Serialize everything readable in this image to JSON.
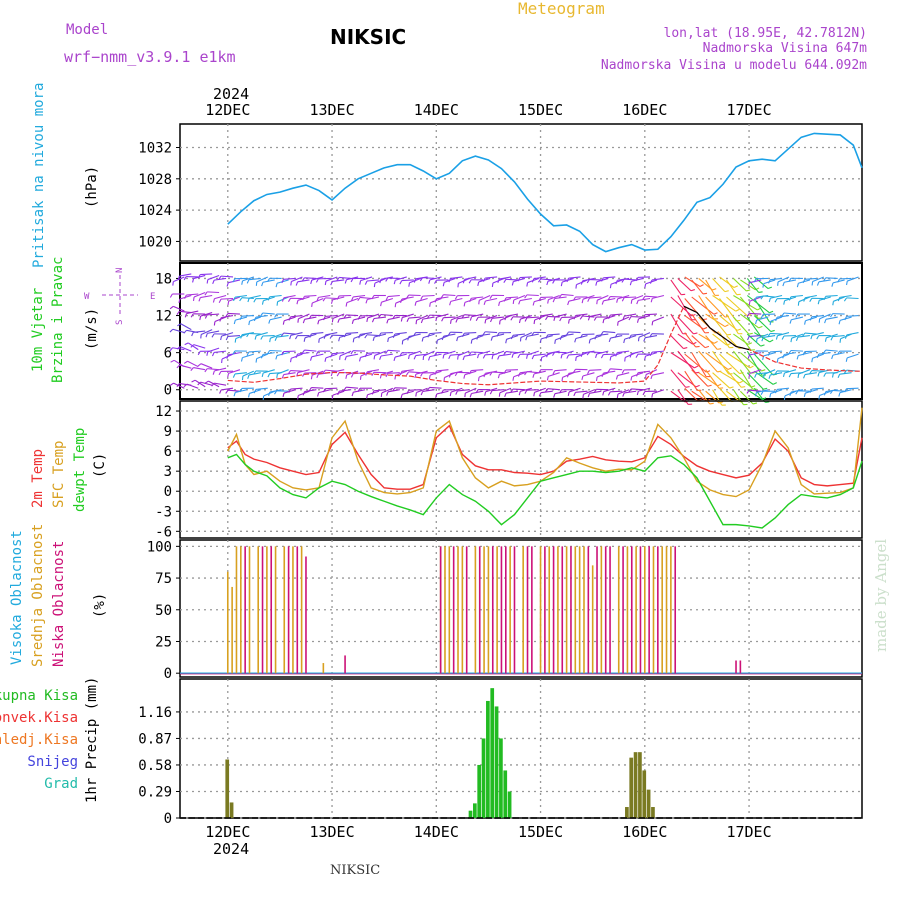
{
  "header": {
    "model_label": "Model",
    "model_name": "wrf−nmm_v3.9.1  e1km",
    "station": "NIKSIC",
    "meteogram": "Meteogram",
    "lonlat": "lon,lat (18.95E, 42.7812N)",
    "altitude": "Nadmorska Visina 647m",
    "model_altitude": "Nadmorska Visina u modelu 644.092m",
    "footer_station": "NIKSIC",
    "watermark": "made by Angel"
  },
  "colors": {
    "pressure": "#1aa0e6",
    "temp2m": "#ee3333",
    "sfc": "#d8a020",
    "dewpt": "#22cc22",
    "high_cloud": "#22aadd",
    "mid_cloud": "#d8a020",
    "low_cloud": "#cc1177",
    "total_precip": "#22bb22",
    "conv_precip": "#ee3333",
    "frz_precip": "#ee7722",
    "snow": "#4444dd",
    "grad": "#22bbaa",
    "title_purple": "#aa44cc",
    "title_gold": "#e8b830"
  },
  "icons": {
    "wind_compass": "wind-direction-compass-icon"
  },
  "chart_data": [
    {
      "type": "line",
      "panel": "pressure",
      "ylabel_title": "Pritisak na nivou mora",
      "ylabel_unit": "(hPa)",
      "ylim": [
        1017.5,
        1035
      ],
      "yticks": [
        1020,
        1024,
        1028,
        1032
      ],
      "x_top_year": "2024",
      "x_top_labels": [
        "12DEC",
        "13DEC",
        "14DEC",
        "15DEC",
        "16DEC",
        "17DEC"
      ],
      "grid": true,
      "series": [
        {
          "key": "pressure",
          "x": [
            0,
            3,
            6,
            9,
            12,
            15,
            18,
            21,
            24,
            27,
            30,
            33,
            36,
            39,
            42,
            45,
            48,
            51,
            54,
            57,
            60,
            63,
            66,
            69,
            72,
            75,
            78,
            81,
            84,
            87,
            90,
            93,
            96,
            99,
            102,
            105,
            108,
            111,
            114,
            117,
            120,
            123,
            126,
            129,
            132,
            135,
            138,
            141,
            144,
            146
          ],
          "values": [
            1022.2,
            1023.8,
            1025.2,
            1026.0,
            1026.3,
            1026.8,
            1027.2,
            1026.5,
            1025.3,
            1026.8,
            1028.0,
            1028.7,
            1029.4,
            1029.8,
            1029.8,
            1029.0,
            1028.0,
            1028.7,
            1030.3,
            1030.9,
            1030.4,
            1029.3,
            1027.6,
            1025.4,
            1023.5,
            1022.0,
            1022.1,
            1021.3,
            1019.6,
            1018.7,
            1019.2,
            1019.6,
            1018.9,
            1019.0,
            1020.6,
            1022.7,
            1025.0,
            1025.6,
            1027.3,
            1029.5,
            1030.3,
            1030.5,
            1030.3,
            1031.8,
            1033.3,
            1033.8,
            1033.7,
            1033.6,
            1032.3,
            1029.4
          ]
        }
      ]
    },
    {
      "type": "scatter",
      "panel": "wind",
      "ylabel_title": "10m Vjetar",
      "ylabel_title2": "Brzina i Pravac",
      "ylabel_unit": "(m/s)",
      "compass": {
        "n": "N",
        "s": "S",
        "w": "W",
        "e": "E"
      },
      "ylim": [
        -1.5,
        20.5
      ],
      "yticks": [
        0,
        6,
        12,
        18
      ],
      "grid": true,
      "note": "wind barbs drawn at levels 0..18 m/s; easterly-dominated flow first, southwesterly surge after 15 DEC 12h",
      "series": [
        {
          "name": "wind speed",
          "x": [
            0,
            6,
            12,
            18,
            24,
            30,
            36,
            42,
            48,
            54,
            60,
            66,
            72,
            78,
            84,
            90,
            96,
            99,
            102,
            105,
            108,
            111,
            114,
            117,
            120,
            126,
            132,
            138,
            144,
            146
          ],
          "values": [
            1.5,
            1.2,
            1.8,
            2.5,
            2.8,
            2.7,
            2.4,
            2.2,
            1.5,
            1.0,
            0.8,
            1.1,
            1.4,
            1.3,
            1.2,
            1.1,
            1.4,
            4.0,
            9.0,
            13.5,
            12.5,
            10.0,
            8.5,
            7.0,
            6.5,
            4.5,
            3.5,
            3.2,
            3.0,
            3.0
          ]
        }
      ]
    },
    {
      "type": "line",
      "panel": "temperature",
      "ylabel_t2m": "2m Temp",
      "ylabel_sfc": "SFC Temp",
      "ylabel_dew": "dewpt Temp",
      "ylabel_unit": "(C)",
      "ylim": [
        -7,
        13.5
      ],
      "yticks": [
        -6,
        -3,
        0,
        3,
        6,
        9,
        12
      ],
      "grid": true,
      "series": [
        {
          "key": "temp2m",
          "x": [
            0,
            2,
            4,
            6,
            9,
            12,
            15,
            18,
            21,
            24,
            27,
            30,
            33,
            36,
            39,
            42,
            45,
            48,
            51,
            54,
            57,
            60,
            63,
            66,
            69,
            72,
            75,
            78,
            81,
            84,
            87,
            90,
            93,
            96,
            99,
            102,
            105,
            108,
            111,
            114,
            117,
            120,
            123,
            126,
            129,
            132,
            135,
            138,
            141,
            144,
            146
          ],
          "values": [
            6.5,
            7.5,
            5.5,
            4.8,
            4.3,
            3.5,
            3.0,
            2.5,
            2.8,
            7.0,
            8.8,
            5.5,
            2.5,
            0.5,
            0.3,
            0.3,
            1.0,
            8.0,
            9.8,
            5.5,
            3.8,
            3.2,
            3.2,
            2.8,
            2.7,
            2.5,
            3.0,
            4.5,
            4.8,
            5.2,
            4.7,
            4.5,
            4.4,
            5.0,
            8.2,
            7.0,
            5.2,
            3.8,
            3.0,
            2.5,
            2.0,
            2.4,
            4.2,
            7.8,
            6.0,
            2.0,
            1.0,
            0.8,
            1.0,
            1.2,
            8.0
          ]
        },
        {
          "key": "sfc",
          "x": [
            0,
            2,
            4,
            6,
            9,
            12,
            15,
            18,
            21,
            24,
            27,
            30,
            33,
            36,
            39,
            42,
            45,
            48,
            51,
            54,
            57,
            60,
            63,
            66,
            69,
            72,
            75,
            78,
            81,
            84,
            87,
            90,
            93,
            96,
            99,
            102,
            105,
            108,
            111,
            114,
            117,
            120,
            123,
            126,
            129,
            132,
            135,
            138,
            141,
            144,
            146
          ],
          "values": [
            6.0,
            8.5,
            4.0,
            2.5,
            3.0,
            1.5,
            0.5,
            0.2,
            0.5,
            8.0,
            10.5,
            4.5,
            0.5,
            -0.2,
            -0.4,
            -0.2,
            0.5,
            9.0,
            10.5,
            5.0,
            2.0,
            0.5,
            1.5,
            0.8,
            1.0,
            1.5,
            2.8,
            5.0,
            4.2,
            3.5,
            3.0,
            3.3,
            3.2,
            4.5,
            10.0,
            8.0,
            5.0,
            1.5,
            0.2,
            -0.5,
            -0.8,
            0.2,
            4.0,
            9.0,
            6.5,
            1.0,
            -0.4,
            -0.3,
            -0.2,
            0.5,
            12.5
          ]
        },
        {
          "key": "dewpt",
          "x": [
            0,
            2,
            4,
            6,
            9,
            12,
            15,
            18,
            21,
            24,
            27,
            30,
            33,
            36,
            39,
            42,
            45,
            48,
            51,
            54,
            57,
            60,
            63,
            66,
            69,
            72,
            75,
            78,
            81,
            84,
            87,
            90,
            93,
            96,
            99,
            102,
            105,
            108,
            111,
            114,
            117,
            120,
            123,
            126,
            129,
            132,
            135,
            138,
            141,
            144,
            146
          ],
          "values": [
            5.0,
            5.5,
            4.0,
            3.0,
            2.3,
            0.5,
            -0.5,
            -1.0,
            0.5,
            1.5,
            1.0,
            0.0,
            -0.8,
            -1.5,
            -2.2,
            -2.8,
            -3.5,
            -1.0,
            1.0,
            -0.5,
            -1.5,
            -3.0,
            -5.0,
            -3.5,
            -1.0,
            1.5,
            2.0,
            2.5,
            3.0,
            3.0,
            2.8,
            3.0,
            3.5,
            3.0,
            5.0,
            5.3,
            4.0,
            2.0,
            -1.5,
            -5.0,
            -5.0,
            -5.2,
            -5.5,
            -4.0,
            -2.0,
            -0.5,
            -0.8,
            -1.0,
            -0.5,
            0.5,
            4.5
          ]
        }
      ]
    },
    {
      "type": "bar",
      "panel": "cloud",
      "ylabel_high": "Visoka Oblacnost",
      "ylabel_mid": "Srednja Oblacnost",
      "ylabel_low": "Niska Oblacnost",
      "ylabel_unit": "(%)",
      "ylim": [
        -3,
        105
      ],
      "yticks": [
        0,
        25,
        50,
        75,
        100
      ],
      "grid": true,
      "series": [
        {
          "key": "mid_cloud",
          "x": [
            0,
            1,
            2,
            3,
            5,
            7,
            9,
            11,
            13,
            15,
            17,
            22,
            49,
            50,
            51,
            53,
            54,
            57,
            59,
            60,
            62,
            65,
            68,
            72,
            74,
            76,
            78,
            80,
            81,
            82,
            84,
            86,
            90,
            92,
            94,
            96,
            98,
            100,
            101,
            102
          ],
          "values": [
            80,
            68,
            100,
            100,
            100,
            100,
            100,
            100,
            100,
            100,
            100,
            8,
            100,
            100,
            100,
            100,
            100,
            100,
            100,
            100,
            100,
            100,
            100,
            100,
            100,
            100,
            100,
            100,
            100,
            100,
            85,
            100,
            100,
            100,
            100,
            100,
            100,
            100,
            100,
            100
          ]
        },
        {
          "key": "low_cloud",
          "x": [
            4,
            8,
            10,
            14,
            16,
            18,
            27,
            49,
            52,
            55,
            58,
            61,
            63,
            64,
            66,
            69,
            70,
            73,
            75,
            77,
            79,
            83,
            85,
            87,
            88,
            91,
            93,
            95,
            97,
            99,
            103,
            117,
            118
          ],
          "values": [
            100,
            100,
            100,
            100,
            100,
            92,
            14,
            100,
            100,
            100,
            100,
            100,
            100,
            100,
            100,
            100,
            100,
            100,
            100,
            100,
            100,
            100,
            100,
            100,
            100,
            100,
            100,
            100,
            100,
            100,
            100,
            10,
            10
          ]
        },
        {
          "key": "high_cloud",
          "x": [
            0,
            24,
            48,
            72,
            96,
            120,
            144
          ],
          "values": [
            0,
            0,
            0,
            0,
            0,
            0,
            0
          ]
        }
      ]
    },
    {
      "type": "bar",
      "panel": "precip",
      "legend": [
        "Ukupna Kisa",
        "Konvek.Kisa",
        "Zaledj.Kisa",
        "Snijeg",
        "Grad"
      ],
      "legend_keys": [
        "total_precip",
        "conv_precip",
        "frz_precip",
        "snow",
        "grad"
      ],
      "ylabel_unit": "1hr Precip (mm)",
      "ylim": [
        0,
        1.52
      ],
      "yticks": [
        0,
        0.29,
        0.58,
        0.87,
        1.16
      ],
      "x_bottom_labels": [
        "12DEC",
        "13DEC",
        "14DEC",
        "15DEC",
        "16DEC",
        "17DEC"
      ],
      "x_bottom_year": "2024",
      "grid": true,
      "series": [
        {
          "key": "total_precip",
          "x": [
            0,
            1,
            56,
            57,
            58,
            59,
            60,
            61,
            62,
            63,
            64,
            65,
            92,
            93,
            94,
            95,
            96,
            97,
            98
          ],
          "values": [
            0.64,
            0.17,
            0.08,
            0.16,
            0.58,
            0.87,
            1.28,
            1.42,
            1.22,
            0.87,
            0.52,
            0.29,
            0.12,
            0.66,
            0.72,
            0.72,
            0.52,
            0.31,
            0.12
          ],
          "mixed_x": [
            0,
            1,
            92,
            93,
            94,
            95,
            96,
            97,
            98
          ]
        }
      ]
    }
  ]
}
